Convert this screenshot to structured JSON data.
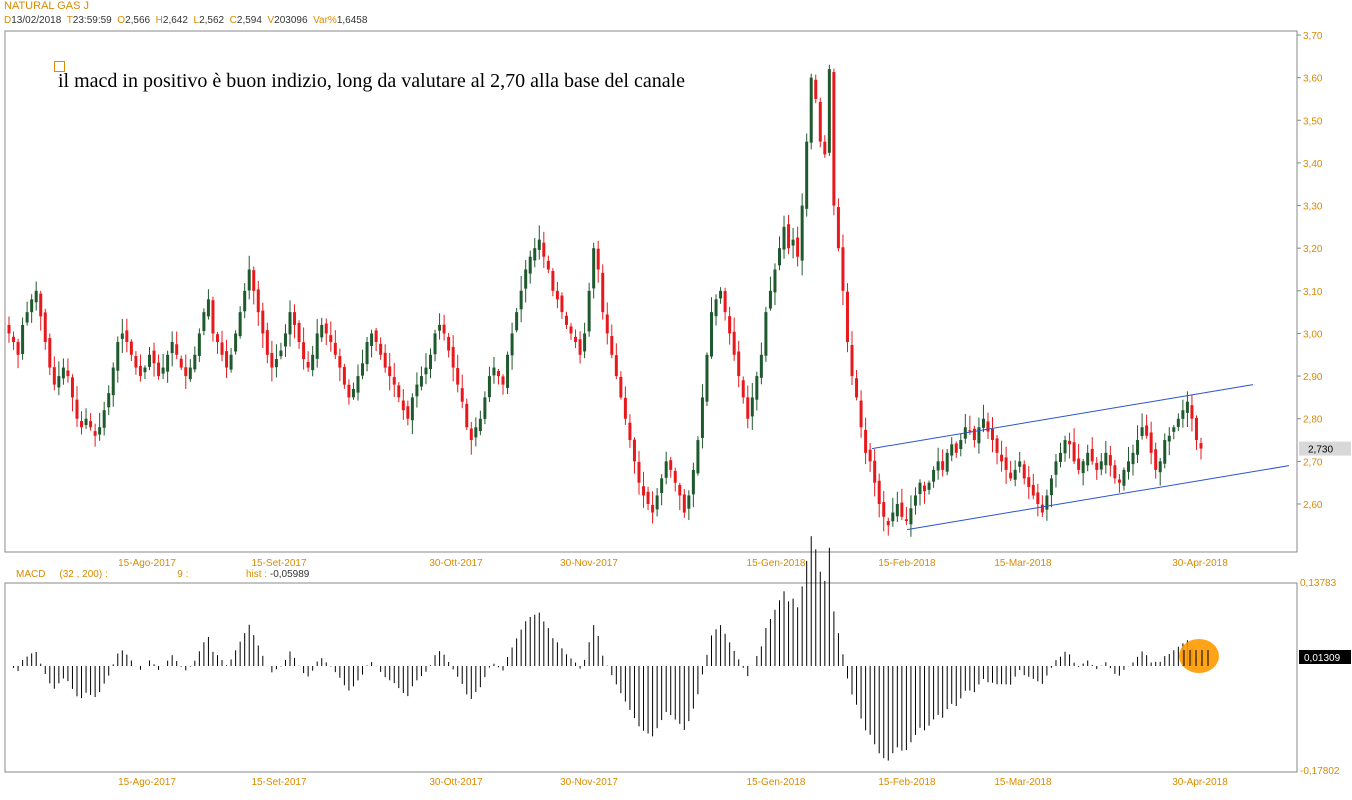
{
  "header": {
    "title": "NATURAL GAS J",
    "fields": [
      {
        "key": "D",
        "value": "13/02/2018"
      },
      {
        "key": "T",
        "value": "23:59:59"
      },
      {
        "key": "O",
        "value": "2,566"
      },
      {
        "key": "H",
        "value": "2,642"
      },
      {
        "key": "L",
        "value": "2,562"
      },
      {
        "key": "C",
        "value": "2,594"
      },
      {
        "key": "V",
        "value": "203096"
      },
      {
        "key": "Var%",
        "value": "1,6458"
      }
    ]
  },
  "annotation": "il macd in positivo è buon indizio, long da valutare al 2,70 alla base del canale",
  "macd_header": {
    "name": "MACD",
    "params": "(32 , 200) :",
    "signal": "9 :",
    "hist_label": "hist :",
    "hist_value": "-0,05989"
  },
  "colors": {
    "up": "#1f5a2e",
    "down": "#e8191c",
    "channel": "#2a54c9",
    "axis_text": "#d98a00",
    "highlight": "#ff9900"
  },
  "chart_data": [
    {
      "type": "candlestick",
      "title": "NATURAL GAS J",
      "ylim": [
        2.52,
        3.7
      ],
      "y_ticks": [
        "3,70",
        "3,60",
        "3,50",
        "3,40",
        "3,30",
        "3,20",
        "3,10",
        "3,00",
        "2,90",
        "2,80",
        "2,70",
        "2,60"
      ],
      "x_ticks": [
        "15-Ago-2017",
        "15-Set-2017",
        "30-Ott-2017",
        "30-Nov-2017",
        "15-Gen-2018",
        "15-Feb-2018",
        "15-Mar-2018",
        "30-Apr-2018"
      ],
      "last_price_label": "2,730",
      "grid": false,
      "closes": [
        3.0,
        2.98,
        2.95,
        3.02,
        3.05,
        3.08,
        3.1,
        3.04,
        2.98,
        2.92,
        2.88,
        2.9,
        2.92,
        2.9,
        2.85,
        2.8,
        2.78,
        2.8,
        2.78,
        2.76,
        2.78,
        2.82,
        2.86,
        2.92,
        2.98,
        3.0,
        2.98,
        2.95,
        2.92,
        2.9,
        2.92,
        2.95,
        2.93,
        2.9,
        2.92,
        2.95,
        2.98,
        2.95,
        2.92,
        2.9,
        2.92,
        2.95,
        3.0,
        3.05,
        3.08,
        3.0,
        2.98,
        2.95,
        2.92,
        2.95,
        3.0,
        3.05,
        3.1,
        3.15,
        3.1,
        3.05,
        3.0,
        2.95,
        2.92,
        2.94,
        2.96,
        3.0,
        3.05,
        3.02,
        2.98,
        2.94,
        2.92,
        2.95,
        3.0,
        3.02,
        3.0,
        2.98,
        2.95,
        2.92,
        2.88,
        2.85,
        2.87,
        2.9,
        2.93,
        2.98,
        3.0,
        2.98,
        2.95,
        2.92,
        2.9,
        2.88,
        2.85,
        2.82,
        2.8,
        2.85,
        2.88,
        2.9,
        2.92,
        2.95,
        3.0,
        3.02,
        3.0,
        2.96,
        2.92,
        2.88,
        2.84,
        2.78,
        2.75,
        2.78,
        2.8,
        2.85,
        2.9,
        2.92,
        2.9,
        2.88,
        2.95,
        3.0,
        3.05,
        3.1,
        3.15,
        3.18,
        3.2,
        3.22,
        3.18,
        3.15,
        3.1,
        3.08,
        3.05,
        3.02,
        3.0,
        2.98,
        2.95,
        3.0,
        3.1,
        3.2,
        3.15,
        3.05,
        3.0,
        2.95,
        2.9,
        2.85,
        2.8,
        2.75,
        2.7,
        2.65,
        2.62,
        2.6,
        2.58,
        2.62,
        2.66,
        2.7,
        2.68,
        2.65,
        2.62,
        2.58,
        2.62,
        2.68,
        2.75,
        2.85,
        2.95,
        3.05,
        3.08,
        3.1,
        3.05,
        3.0,
        2.95,
        2.9,
        2.85,
        2.8,
        2.85,
        2.9,
        2.95,
        3.05,
        3.1,
        3.15,
        3.2,
        3.25,
        3.2,
        3.22,
        3.18,
        3.3,
        3.45,
        3.6,
        3.55,
        3.45,
        3.42,
        3.62,
        3.3,
        3.2,
        3.1,
        2.98,
        2.9,
        2.85,
        2.78,
        2.72,
        2.7,
        2.65,
        2.6,
        2.57,
        2.55,
        2.58,
        2.6,
        2.57,
        2.56,
        2.59,
        2.62,
        2.65,
        2.63,
        2.65,
        2.68,
        2.7,
        2.68,
        2.72,
        2.74,
        2.72,
        2.75,
        2.78,
        2.77,
        2.75,
        2.78,
        2.8,
        2.77,
        2.75,
        2.72,
        2.7,
        2.68,
        2.66,
        2.68,
        2.7,
        2.66,
        2.64,
        2.62,
        2.6,
        2.58,
        2.62,
        2.66,
        2.7,
        2.72,
        2.75,
        2.74,
        2.7,
        2.68,
        2.7,
        2.72,
        2.7,
        2.68,
        2.7,
        2.72,
        2.69,
        2.66,
        2.65,
        2.68,
        2.7,
        2.72,
        2.75,
        2.78,
        2.76,
        2.72,
        2.68,
        2.7,
        2.75,
        2.76,
        2.78,
        2.8,
        2.82,
        2.84,
        2.8,
        2.75,
        2.73
      ],
      "channel_upper": [
        [
          "15-Feb-2018",
          2.73
        ],
        [
          "30-Apr-2018 +",
          2.88
        ]
      ],
      "channel_lower": [
        [
          "15-Feb-2018",
          2.54
        ],
        [
          "30-Apr-2018 +",
          2.69
        ]
      ]
    },
    {
      "type": "bar",
      "title": "MACD",
      "ylim": [
        -0.17802,
        0.13783
      ],
      "y_ticks": [
        "0,13783",
        "-0,17802"
      ],
      "last_value_label": "0,01309",
      "x_ticks": [
        "15-Ago-2017",
        "15-Set-2017",
        "30-Ott-2017",
        "30-Nov-2017",
        "15-Gen-2018",
        "15-Feb-2018",
        "15-Mar-2018",
        "30-Apr-2018"
      ]
    }
  ]
}
